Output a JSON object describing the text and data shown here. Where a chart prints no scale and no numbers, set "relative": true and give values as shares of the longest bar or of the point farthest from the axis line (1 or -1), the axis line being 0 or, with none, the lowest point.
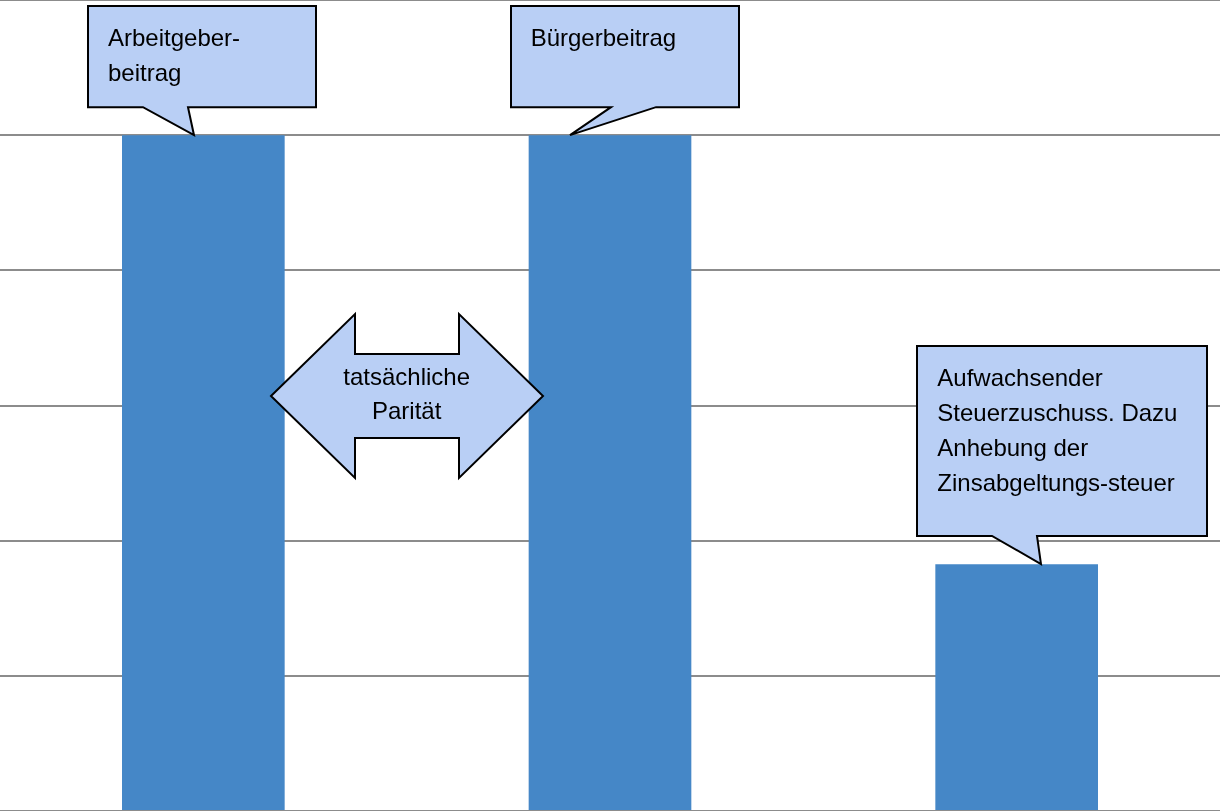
{
  "chart_data": {
    "type": "bar",
    "relative": true,
    "categories": [
      null,
      null,
      null
    ],
    "values": [
      1,
      1,
      0.365
    ],
    "color": "#4587c7",
    "grid": "y",
    "annotations": [
      "Arbeitgeber-beitrag",
      "Bürgerbeitrag",
      "tatsächliche Parität",
      "Aufwachsender Steuerzuschuss. Dazu Anhebung der Zinsabgeltungs-steuer"
    ]
  }
}
